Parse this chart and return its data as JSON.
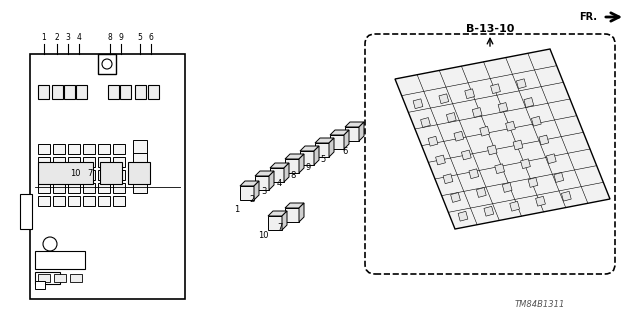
{
  "background_color": "#ffffff",
  "title_text": "TM84B1311",
  "label_b1310": "B-13-10",
  "fr_label": "FR.",
  "numbers_top": [
    "1",
    "2",
    "3",
    "4",
    "8",
    "9",
    "5",
    "6"
  ],
  "numbers_mid": [
    "10",
    "7"
  ],
  "small_labels": [
    "1",
    "2",
    "3",
    "4",
    "8",
    "9",
    "5",
    "6",
    "10",
    "7"
  ],
  "line_color": "#000000",
  "fill_color": "#f0f0f0"
}
